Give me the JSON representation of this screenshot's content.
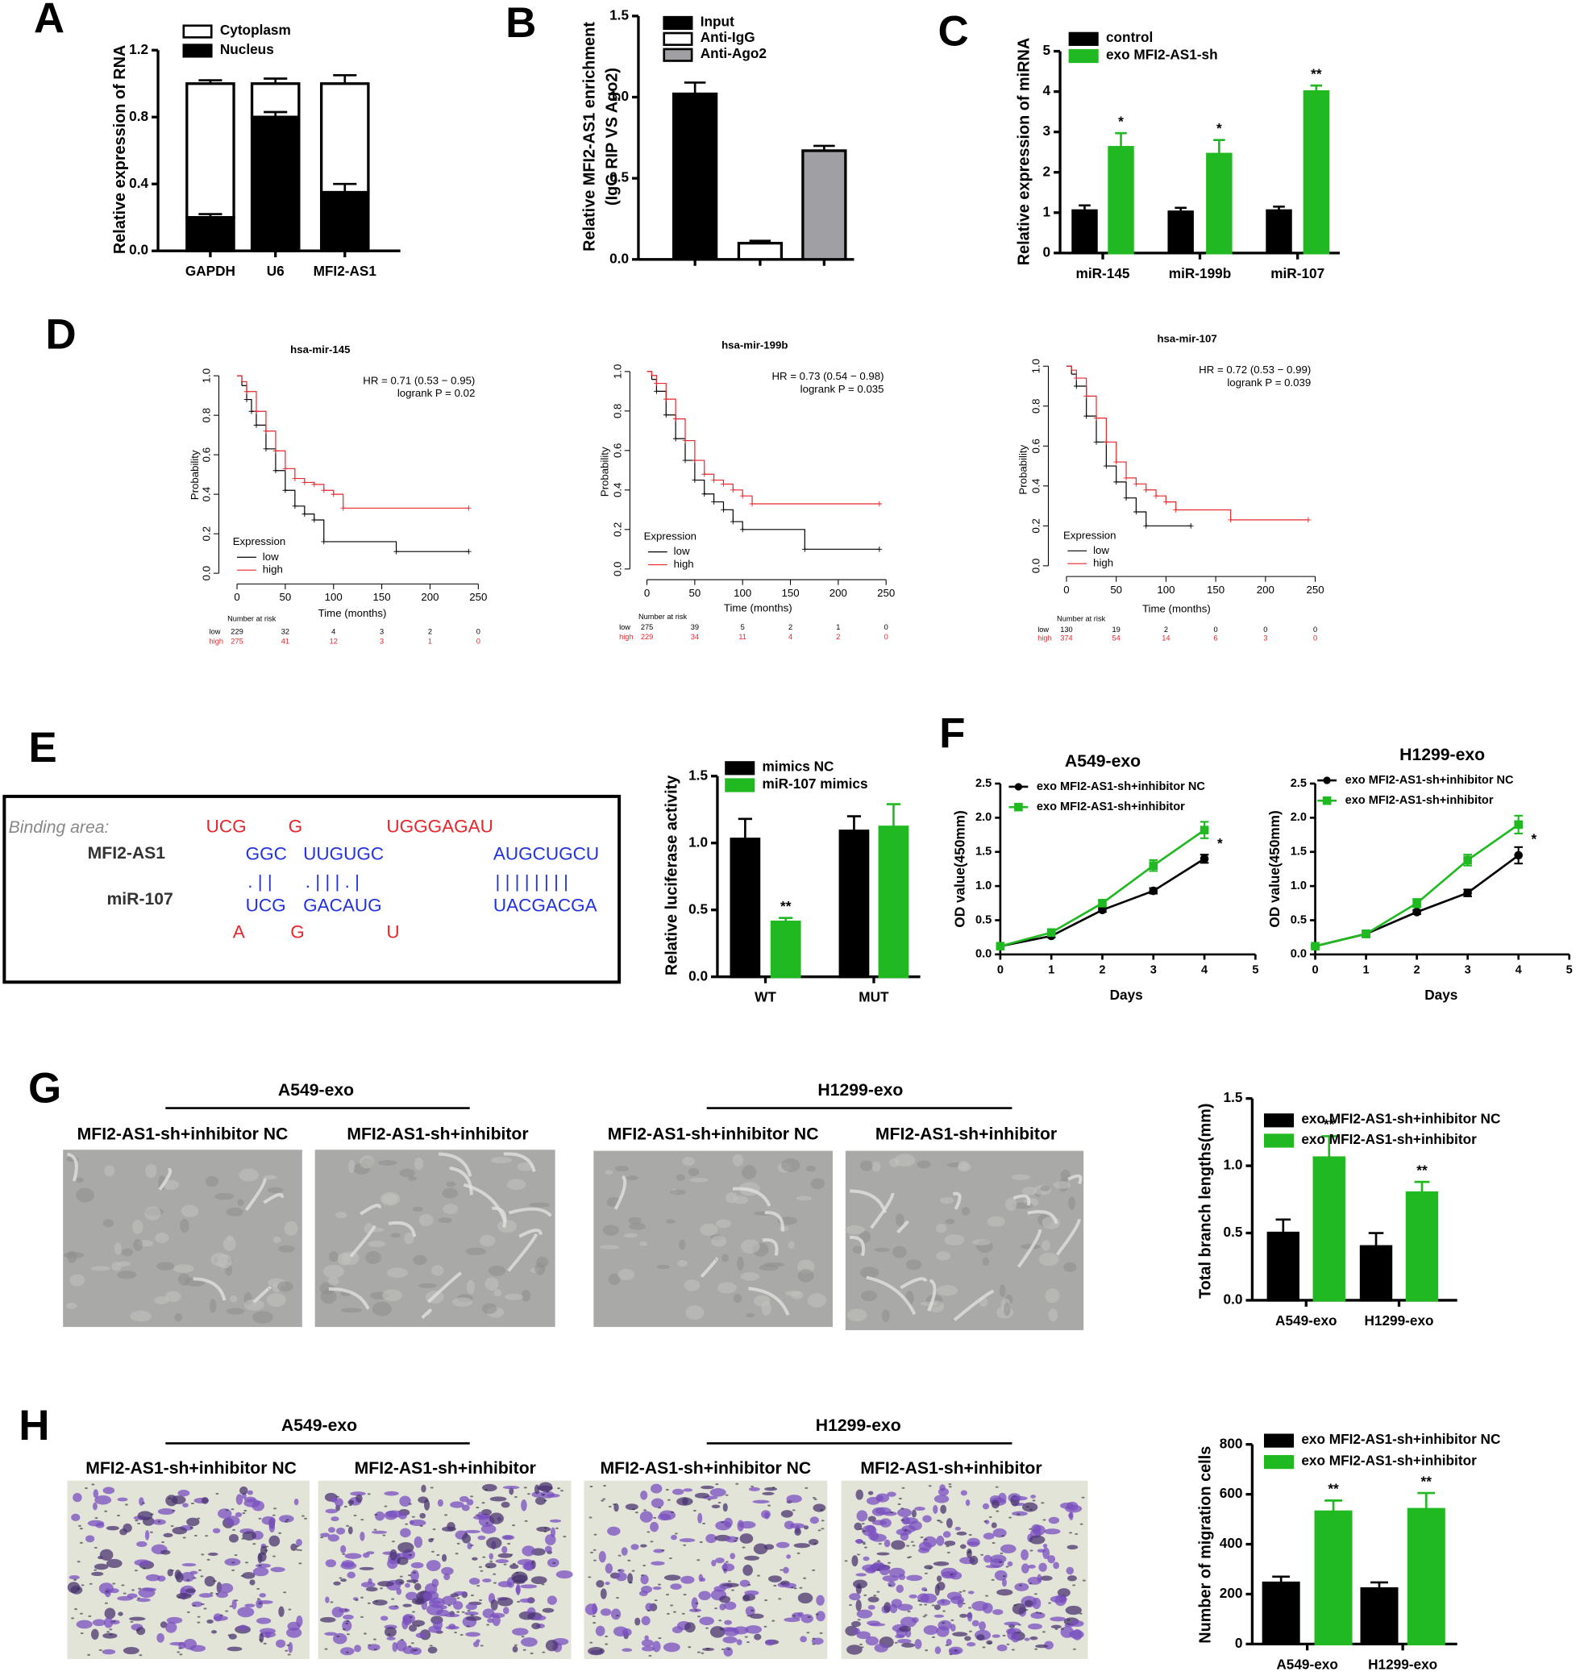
{
  "chart_data": [
    {
      "panel": "A",
      "type": "stacked_bar",
      "ylabel": "Relative expression of RNA",
      "categories": [
        "GAPDH",
        "U6",
        "MFI2-AS1"
      ],
      "series": [
        {
          "name": "Cytoplasm",
          "color": "#ffffff",
          "values": [
            0.8,
            0.2,
            0.65
          ],
          "errors": [
            0.02,
            0.03,
            0.05
          ]
        },
        {
          "name": "Nucleus",
          "color": "#000000",
          "values": [
            0.2,
            0.8,
            0.35
          ],
          "errors": [
            0.02,
            0.03,
            0.05
          ]
        }
      ],
      "ylim": [
        0,
        1.2
      ],
      "yticks": [
        {
          "value": 0,
          "label": "0.0"
        },
        0.4,
        0.8,
        1.2
      ]
    },
    {
      "panel": "B",
      "type": "bar",
      "ylabel": [
        "Relative MFI2-AS1 enrichment",
        "(IgG RIP VS Ago2)"
      ],
      "series": [
        {
          "name": "Input",
          "color": "#000000",
          "values": [
            1.02
          ],
          "errors": [
            0.07
          ]
        },
        {
          "name": "Anti-IgG",
          "color": "#ffffff",
          "values": [
            0.1
          ],
          "errors": [
            0.015
          ]
        },
        {
          "name": "Anti-Ago2",
          "color": "#a0a0a4",
          "values": [
            0.67
          ],
          "errors": [
            0.03
          ]
        }
      ],
      "ylim": [
        0,
        1.5
      ],
      "yticks": [
        {
          "value": 0,
          "label": "0.0"
        },
        0.5,
        {
          "value": 1,
          "label": "1.0"
        },
        1.5
      ]
    },
    {
      "panel": "C",
      "type": "bar",
      "ylabel": "Relative expression of miRNA",
      "categories": [
        "miR-145",
        "miR-199b",
        "miR-107"
      ],
      "series": [
        {
          "name": "control",
          "color": "#000000",
          "values": [
            1.05,
            1.02,
            1.05
          ],
          "errors": [
            0.13,
            0.1,
            0.1
          ]
        },
        {
          "name": "exo MFI2-AS1-sh",
          "color": "#21b921",
          "values": [
            2.62,
            2.45,
            4.0
          ],
          "errors": [
            0.35,
            0.35,
            0.15
          ],
          "annotations": [
            "*",
            "*",
            "**"
          ]
        }
      ],
      "ylim": [
        0,
        5
      ],
      "yticks": [
        0,
        1,
        2,
        3,
        4,
        5
      ]
    },
    {
      "panel": "D",
      "type": "km",
      "title": "hsa-mir-145",
      "hr": "HR = 0.71 (0.53 − 0.95)",
      "logrank": "logrank P = 0.02",
      "xlabel": "Time (months)",
      "ylabel": "Probability",
      "legend_title": "Expression",
      "risk_title": "Number at risk",
      "xlim": [
        0,
        250
      ],
      "xticks": [
        0,
        50,
        100,
        150,
        200,
        250
      ],
      "ylim": [
        0,
        1
      ],
      "yticks": [
        {
          "value": 0,
          "label": "0.0"
        },
        0.2,
        0.4,
        0.6,
        0.8,
        {
          "value": 1,
          "label": "1.0"
        }
      ],
      "series": [
        {
          "name": "low",
          "color": "#000000",
          "x": [
            0,
            5,
            10,
            15,
            20,
            30,
            40,
            50,
            60,
            70,
            80,
            90,
            165,
            240
          ],
          "values": [
            1,
            0.95,
            0.88,
            0.82,
            0.75,
            0.63,
            0.52,
            0.42,
            0.34,
            0.3,
            0.27,
            0.16,
            0.11,
            0.11
          ],
          "at_risk": [
            229,
            32,
            4,
            3,
            2,
            0
          ]
        },
        {
          "name": "high",
          "color": "#e8262b",
          "x": [
            0,
            5,
            10,
            20,
            30,
            40,
            50,
            60,
            70,
            80,
            90,
            100,
            110,
            240
          ],
          "values": [
            1,
            0.97,
            0.92,
            0.82,
            0.72,
            0.62,
            0.53,
            0.48,
            0.46,
            0.45,
            0.42,
            0.4,
            0.33,
            0.33
          ],
          "at_risk": [
            275,
            41,
            12,
            3,
            1,
            0
          ]
        }
      ]
    },
    {
      "type": "km",
      "title": "hsa-mir-199b",
      "hr": "HR = 0.73 (0.54 − 0.98)",
      "logrank": "logrank P = 0.035",
      "xlabel": "Time (months)",
      "ylabel": "Probability",
      "legend_title": "Expression",
      "risk_title": "Number at risk",
      "xlim": [
        0,
        250
      ],
      "xticks": [
        0,
        50,
        100,
        150,
        200,
        250
      ],
      "ylim": [
        0,
        1
      ],
      "yticks": [
        {
          "value": 0,
          "label": "0.0"
        },
        0.2,
        0.4,
        0.6,
        0.8,
        {
          "value": 1,
          "label": "1.0"
        }
      ],
      "series": [
        {
          "name": "low",
          "color": "#000000",
          "x": [
            0,
            5,
            10,
            20,
            30,
            40,
            50,
            60,
            70,
            80,
            90,
            100,
            165,
            243
          ],
          "values": [
            1,
            0.96,
            0.9,
            0.78,
            0.66,
            0.55,
            0.45,
            0.38,
            0.34,
            0.3,
            0.24,
            0.2,
            0.1,
            0.1
          ],
          "at_risk": [
            275,
            39,
            5,
            2,
            1,
            0
          ]
        },
        {
          "name": "high",
          "color": "#e8262b",
          "x": [
            0,
            5,
            10,
            20,
            30,
            40,
            50,
            60,
            70,
            80,
            90,
            100,
            110,
            243
          ],
          "values": [
            1,
            0.98,
            0.94,
            0.86,
            0.76,
            0.65,
            0.55,
            0.48,
            0.45,
            0.43,
            0.4,
            0.37,
            0.33,
            0.33
          ],
          "at_risk": [
            229,
            34,
            11,
            4,
            2,
            0
          ]
        }
      ]
    },
    {
      "type": "km",
      "title": "hsa-mir-107",
      "hr": "HR = 0.72 (0.53 − 0.99)",
      "logrank": "logrank P = 0.039",
      "xlabel": "Time (months)",
      "ylabel": "Probability",
      "legend_title": "Expression",
      "risk_title": "Number at risk",
      "xlim": [
        0,
        250
      ],
      "xticks": [
        0,
        50,
        100,
        150,
        200,
        250
      ],
      "ylim": [
        0,
        1
      ],
      "yticks": [
        {
          "value": 0,
          "label": "0.0"
        },
        0.2,
        0.4,
        0.6,
        0.8,
        {
          "value": 1,
          "label": "1.0"
        }
      ],
      "series": [
        {
          "name": "low",
          "color": "#000000",
          "x": [
            0,
            5,
            10,
            20,
            30,
            40,
            50,
            60,
            70,
            80,
            125
          ],
          "values": [
            1,
            0.96,
            0.9,
            0.75,
            0.62,
            0.5,
            0.42,
            0.34,
            0.27,
            0.2,
            0.2
          ],
          "at_risk": [
            130,
            19,
            2,
            0,
            0,
            0
          ]
        },
        {
          "name": "high",
          "color": "#e8262b",
          "x": [
            0,
            5,
            10,
            20,
            30,
            40,
            50,
            60,
            70,
            80,
            90,
            100,
            110,
            165,
            243
          ],
          "values": [
            1,
            0.98,
            0.94,
            0.85,
            0.74,
            0.62,
            0.52,
            0.44,
            0.41,
            0.38,
            0.35,
            0.32,
            0.28,
            0.23,
            0.23
          ],
          "at_risk": [
            374,
            54,
            14,
            6,
            3,
            0
          ]
        }
      ]
    },
    {
      "panel": "E",
      "type": "bar",
      "ylabel": "Relative luciferase activity",
      "categories": [
        "WT",
        "MUT"
      ],
      "series": [
        {
          "name": "mimics NC",
          "color": "#000000",
          "values": [
            1.03,
            1.09
          ],
          "errors": [
            0.15,
            0.11
          ]
        },
        {
          "name": "miR-107 mimics",
          "color": "#21b921",
          "values": [
            0.41,
            1.12
          ],
          "errors": [
            0.03,
            0.17
          ],
          "annotations": [
            "**",
            null
          ]
        }
      ],
      "ylim": [
        0,
        1.5
      ],
      "yticks": [
        {
          "value": 0,
          "label": "0.0"
        },
        0.5,
        {
          "value": 1,
          "label": "1.0"
        },
        1.5
      ]
    },
    {
      "panel": "F",
      "type": "line",
      "title": "A549-exo",
      "xlabel": "Days",
      "ylabel": "OD value(450mm)",
      "annotation": "*",
      "x": [
        0,
        1,
        2,
        3,
        4
      ],
      "xlim": [
        0,
        5
      ],
      "xticks": [
        0,
        1,
        2,
        3,
        4,
        5
      ],
      "ylim": [
        0,
        2.5
      ],
      "yticks": [
        {
          "value": 0,
          "label": "0.0"
        },
        0.5,
        {
          "value": 1,
          "label": "1.0"
        },
        1.5,
        {
          "value": 2,
          "label": "2.0"
        },
        2.5
      ],
      "series": [
        {
          "name": "exo MFI2-AS1-sh+inhibitor NC",
          "color": "#000000",
          "marker": "circle",
          "values": [
            0.12,
            0.27,
            0.65,
            0.93,
            1.4
          ],
          "errors": [
            0.02,
            0.02,
            0.03,
            0.04,
            0.06
          ]
        },
        {
          "name": "exo MFI2-AS1-sh+inhibitor",
          "color": "#21b921",
          "marker": "square",
          "values": [
            0.12,
            0.32,
            0.75,
            1.3,
            1.82
          ],
          "errors": [
            0.02,
            0.03,
            0.04,
            0.08,
            0.12
          ]
        }
      ]
    },
    {
      "type": "line",
      "title": "H1299-exo",
      "xlabel": "Days",
      "ylabel": "OD value(450mm)",
      "annotation": "*",
      "x": [
        0,
        1,
        2,
        3,
        4
      ],
      "xlim": [
        0,
        5
      ],
      "xticks": [
        0,
        1,
        2,
        3,
        4,
        5
      ],
      "ylim": [
        0,
        2.5
      ],
      "yticks": [
        {
          "value": 0,
          "label": "0.0"
        },
        0.5,
        {
          "value": 1,
          "label": "1.0"
        },
        1.5,
        {
          "value": 2,
          "label": "2.0"
        },
        2.5
      ],
      "series": [
        {
          "name": "exo MFI2-AS1-sh+inhibitor NC",
          "color": "#000000",
          "marker": "circle",
          "values": [
            0.12,
            0.3,
            0.62,
            0.9,
            1.45
          ],
          "errors": [
            0.02,
            0.04,
            0.03,
            0.05,
            0.12
          ]
        },
        {
          "name": "exo MFI2-AS1-sh+inhibitor",
          "color": "#21b921",
          "marker": "square",
          "values": [
            0.12,
            0.3,
            0.75,
            1.38,
            1.9
          ],
          "errors": [
            0.02,
            0.05,
            0.06,
            0.08,
            0.13
          ]
        }
      ]
    },
    {
      "type": "bar",
      "ylabel": "Total branch lengths(mm)",
      "categories": [
        "A549-exo",
        "H1299-exo"
      ],
      "series": [
        {
          "name": "exo MFI2-AS1-sh+inhibitor NC",
          "color": "#000000",
          "values": [
            0.5,
            0.4
          ],
          "errors": [
            0.1,
            0.1
          ]
        },
        {
          "name": "exo MFI2-AS1-sh+inhibitor",
          "color": "#21b921",
          "values": [
            1.06,
            0.8
          ],
          "errors": [
            0.16,
            0.08
          ],
          "annotations": [
            "**",
            "**"
          ]
        }
      ],
      "ylim": [
        0,
        1.5
      ],
      "yticks": [
        {
          "value": 0,
          "label": "0.0"
        },
        0.5,
        {
          "value": 1,
          "label": "1.0"
        },
        1.5
      ]
    },
    {
      "type": "bar",
      "ylabel": "Number of migration cells",
      "categories": [
        "A549-exo",
        "H1299-exo"
      ],
      "series": [
        {
          "name": "exo MFI2-AS1-sh+inhibitor NC",
          "color": "#000000",
          "values": [
            245,
            222
          ],
          "errors": [
            25,
            25
          ]
        },
        {
          "name": "exo MFI2-AS1-sh+inhibitor",
          "color": "#21b921",
          "values": [
            530,
            540
          ],
          "errors": [
            45,
            65
          ],
          "annotations": [
            "**",
            "**"
          ]
        }
      ],
      "ylim": [
        0,
        800
      ],
      "yticks": [
        0,
        200,
        400,
        600,
        800
      ]
    }
  ],
  "sequence_panel": {
    "label": "Binding area:",
    "names": [
      "MFI2-AS1",
      "miR-107"
    ],
    "rows": [
      [
        "UCG",
        "G",
        "UGGGAGAU"
      ],
      [
        "GGC",
        "UUGUGC",
        "AUGCUGCU"
      ],
      [
        ". | |",
        ". | | | . |",
        "| | | | | | | |"
      ],
      [
        "UCG",
        "GACAUG",
        "UACGACGA"
      ],
      [
        "A",
        "G",
        "U"
      ]
    ]
  },
  "image_panels": [
    {
      "panel": "G",
      "groups": [
        {
          "title": "A549-exo",
          "labels": [
            "MFI2-AS1-sh+inhibitor NC",
            "MFI2-AS1-sh+inhibitor"
          ]
        },
        {
          "title": "H1299-exo",
          "labels": [
            "MFI2-AS1-sh+inhibitor NC",
            "MFI2-AS1-sh+inhibitor"
          ]
        }
      ]
    },
    {
      "panel": "H",
      "groups": [
        {
          "title": "A549-exo",
          "labels": [
            "MFI2-AS1-sh+inhibitor NC",
            "MFI2-AS1-sh+inhibitor"
          ]
        },
        {
          "title": "H1299-exo",
          "labels": [
            "MFI2-AS1-sh+inhibitor NC",
            "MFI2-AS1-sh+inhibitor"
          ]
        }
      ]
    }
  ]
}
